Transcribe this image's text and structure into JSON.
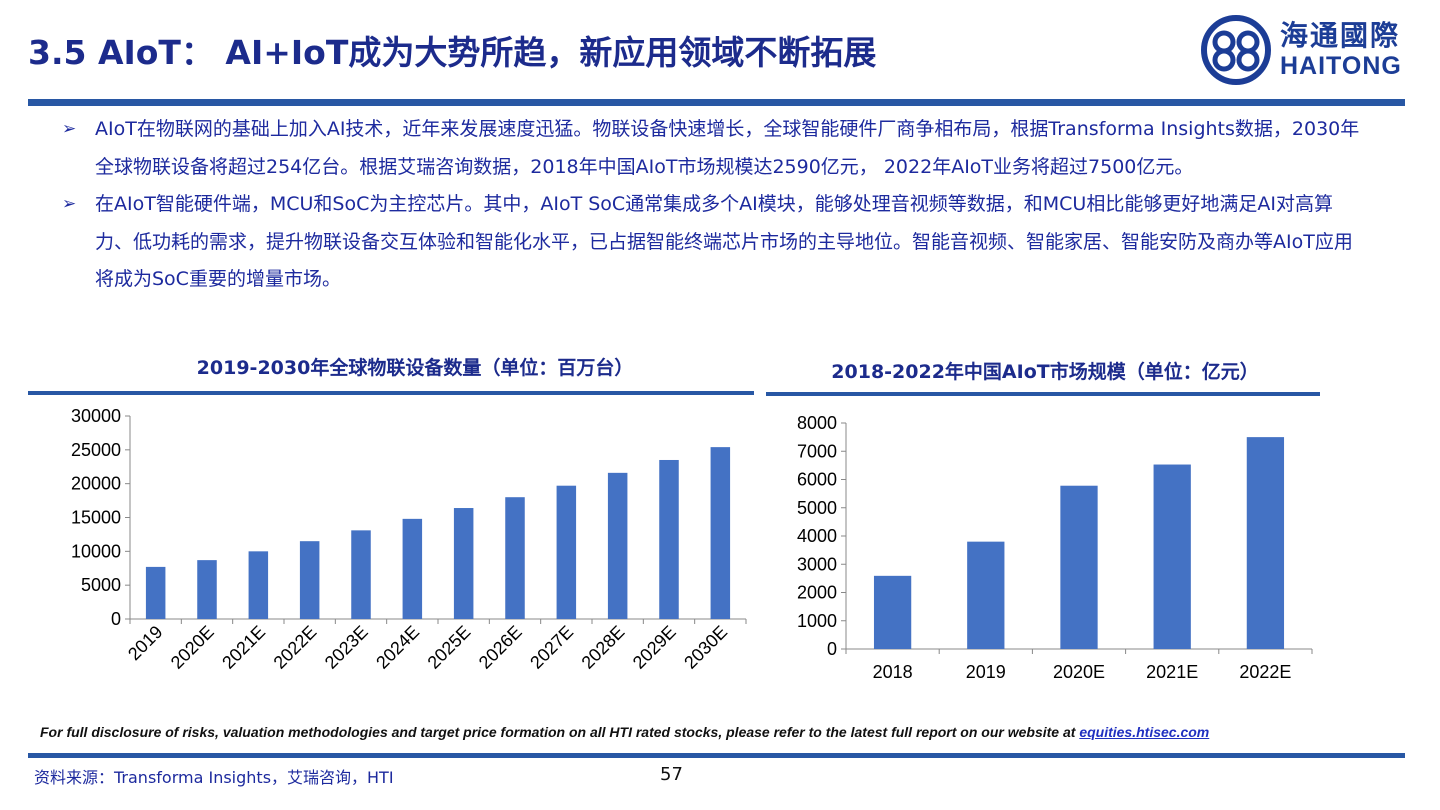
{
  "header": {
    "title": "3.5 AIoT：  AI+IoT成为大势所趋，新应用领域不断拓展",
    "logo_cn": "海通國際",
    "logo_en": "HAITONG"
  },
  "bullets": [
    "AIoT在物联网的基础上加入AI技术，近年来发展速度迅猛。物联设备快速增长，全球智能硬件厂商争相布局，根据Transforma Insights数据，2030年全球物联设备将超过254亿台。根据艾瑞咨询数据，2018年中国AIoT市场规模达2590亿元， 2022年AIoT业务将超过7500亿元。",
    "在AIoT智能硬件端，MCU和SoC为主控芯片。其中，AIoT SoC通常集成多个AI模块，能够处理音视频等数据，和MCU相比能够更好地满足AI对高算力、低功耗的需求，提升物联设备交互体验和智能化水平，已占据智能终端芯片市场的主导地位。智能音视频、智能家居、智能安防及商办等AIoT应用将成为SoC重要的增量市场。"
  ],
  "colors": {
    "bar": "#4472c4",
    "accent": "#2857a4",
    "text": "#1d2a9e"
  },
  "chart_data": [
    {
      "type": "bar",
      "title": "2019-2030年全球物联设备数量（单位：百万台）",
      "categories": [
        "2019",
        "2020E",
        "2021E",
        "2022E",
        "2023E",
        "2024E",
        "2025E",
        "2026E",
        "2027E",
        "2028E",
        "2029E",
        "2030E"
      ],
      "values": [
        7700,
        8700,
        10000,
        11500,
        13100,
        14800,
        16400,
        18000,
        19700,
        21600,
        23500,
        25400
      ],
      "ylim": [
        0,
        30000
      ],
      "yticks": [
        0,
        5000,
        10000,
        15000,
        20000,
        25000,
        30000
      ],
      "xlabel": "",
      "ylabel": ""
    },
    {
      "type": "bar",
      "title": "2018-2022年中国AIoT市场规模（单位：亿元）",
      "categories": [
        "2018",
        "2019",
        "2020E",
        "2021E",
        "2022E"
      ],
      "values": [
        2590,
        3800,
        5780,
        6530,
        7500
      ],
      "ylim": [
        0,
        8000
      ],
      "yticks": [
        0,
        1000,
        2000,
        3000,
        4000,
        5000,
        6000,
        7000,
        8000
      ],
      "xlabel": "",
      "ylabel": ""
    }
  ],
  "footer": {
    "disclaimer": "For full disclosure of risks, valuation methodologies and target price formation on all HTI rated stocks, please refer to the latest full report on our website at ",
    "link": "equities.htisec.com",
    "source": "资料来源：Transforma Insights，艾瑞咨询，HTI",
    "page": "57"
  }
}
